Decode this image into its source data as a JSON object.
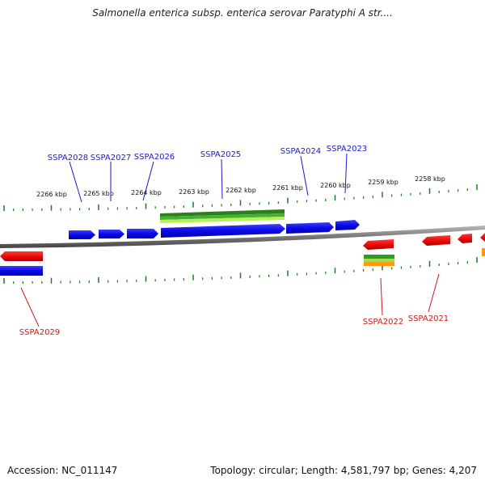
{
  "title": "Salmonella enterica subsp. enterica serovar Paratyphi A str....",
  "footer": {
    "accession_label": "Accession:",
    "accession": "NC_011147",
    "topology_label": "Topology:",
    "topology": "circular",
    "length_label": "Length:",
    "length": "4,581,797 bp",
    "genes_label": "Genes:",
    "genes": "4,207"
  },
  "colors": {
    "forward_gene": "#1010e0",
    "reverse_gene": "#e01010",
    "forward_label": "#1a1acc",
    "reverse_label": "#cc1a1a",
    "tick": "#1e7a1e",
    "backbone": "#888888",
    "feature_green": "#33aa22",
    "feature_light_green": "#aaee55",
    "feature_orange": "#ff9900"
  },
  "scale": {
    "unit": "kbp",
    "tick_labels": [
      "2266 kbp",
      "2265 kbp",
      "2264 kbp",
      "2263 kbp",
      "2262 kbp",
      "2261 kbp",
      "2260 kbp",
      "2259 kbp",
      "2258 kbp"
    ]
  },
  "genes_forward": [
    "SSPA2028",
    "SSPA2027",
    "SSPA2026",
    "SSPA2025",
    "SSPA2024",
    "SSPA2023"
  ],
  "genes_reverse": [
    "SSPA2029",
    "SSPA2022",
    "SSPA2021"
  ]
}
